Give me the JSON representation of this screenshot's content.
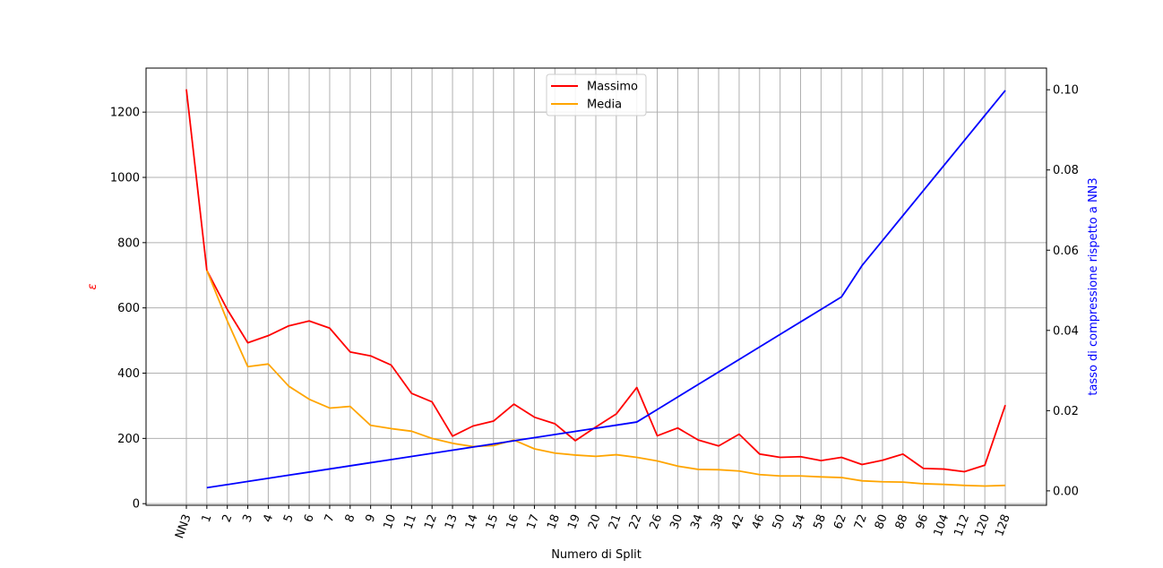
{
  "chart_data": {
    "type": "line",
    "xlabel": "Numero di Split",
    "ylabel": "ε",
    "y2label": "tasso di compressione rispetto a NN3",
    "categories": [
      "NN3",
      "1",
      "2",
      "3",
      "4",
      "5",
      "6",
      "7",
      "8",
      "9",
      "10",
      "11",
      "12",
      "13",
      "14",
      "15",
      "16",
      "17",
      "18",
      "19",
      "20",
      "21",
      "22",
      "26",
      "30",
      "34",
      "38",
      "42",
      "46",
      "50",
      "54",
      "58",
      "62",
      "72",
      "80",
      "88",
      "96",
      "104",
      "112",
      "120",
      "128"
    ],
    "ylim": [
      -5,
      1335
    ],
    "y2lim": [
      -0.0036,
      0.1054
    ],
    "yticks": [
      0,
      200,
      400,
      600,
      800,
      1000,
      1200
    ],
    "y2ticks": [
      "0.00",
      "0.02",
      "0.04",
      "0.06",
      "0.08",
      "0.10"
    ],
    "grid": true,
    "legend_position": "top-center",
    "series": [
      {
        "name": "Massimo",
        "axis": "left",
        "color": "#ff0000",
        "values": [
          1270,
          715,
          595,
          493,
          515,
          545,
          560,
          538,
          465,
          453,
          425,
          338,
          312,
          207,
          238,
          253,
          305,
          265,
          245,
          193,
          235,
          275,
          356,
          208,
          232,
          195,
          177,
          213,
          152,
          142,
          144,
          132,
          142,
          120,
          133,
          152,
          108,
          106,
          98,
          118,
          302
        ]
      },
      {
        "name": "Media",
        "axis": "left",
        "color": "#ffa500",
        "values": [
          null,
          715,
          560,
          420,
          428,
          360,
          320,
          293,
          298,
          240,
          230,
          222,
          200,
          185,
          175,
          178,
          195,
          168,
          155,
          149,
          145,
          150,
          142,
          131,
          115,
          105,
          104,
          100,
          89,
          85,
          85,
          82,
          80,
          70,
          67,
          66,
          61,
          59,
          56,
          54,
          56
        ]
      },
      {
        "name": "",
        "axis": "right",
        "color": "#0000ff",
        "values": [
          null,
          0.00078,
          0.00156,
          0.00234,
          0.00312,
          0.0039,
          0.00468,
          0.00546,
          0.00624,
          0.00702,
          0.0078,
          0.00858,
          0.00936,
          0.01014,
          0.01092,
          0.0117,
          0.01248,
          0.01326,
          0.01404,
          0.01482,
          0.0156,
          0.01638,
          0.01716,
          0.02028,
          0.0234,
          0.02652,
          0.02964,
          0.03276,
          0.03588,
          0.039,
          0.04212,
          0.04524,
          0.04836,
          0.05616,
          0.06239,
          0.06863,
          0.07487,
          0.08111,
          0.08735,
          0.09359,
          0.09983
        ]
      }
    ]
  }
}
